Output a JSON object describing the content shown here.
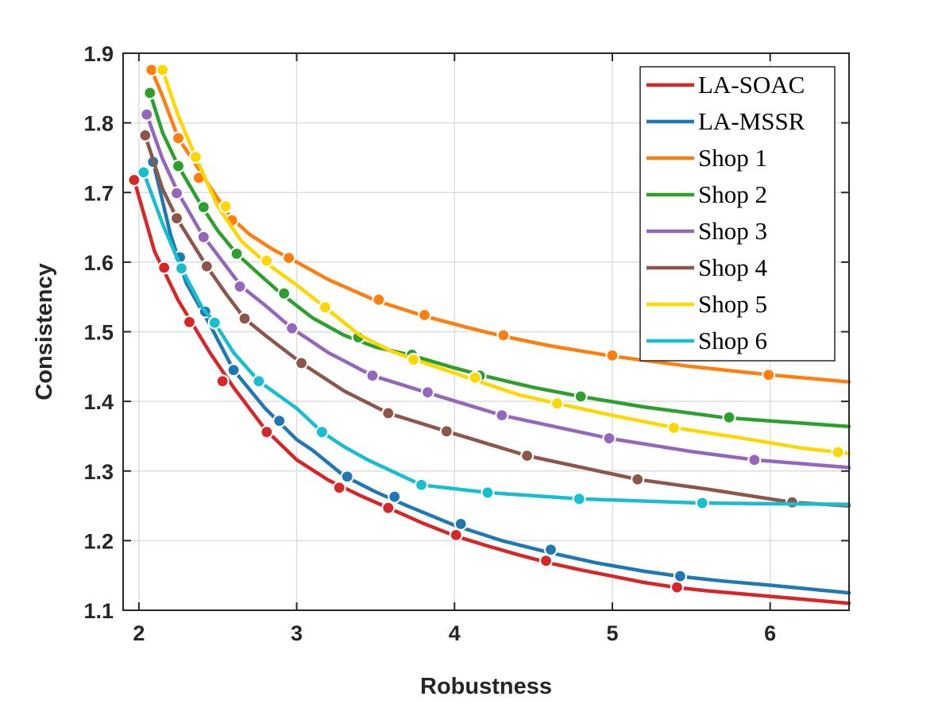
{
  "chart_data": {
    "type": "line",
    "title": "",
    "xlabel": "Robustness",
    "ylabel": "Consistency",
    "xlim": [
      1.9,
      6.5
    ],
    "ylim": [
      1.1,
      1.9
    ],
    "xticks": [
      2,
      3,
      4,
      5,
      6
    ],
    "yticks": [
      1.1,
      1.2,
      1.3,
      1.4,
      1.5,
      1.6,
      1.7,
      1.8,
      1.9
    ],
    "xtick_labels": [
      "2",
      "3",
      "4",
      "5",
      "6"
    ],
    "ytick_labels": [
      "1.1",
      "1.2",
      "1.3",
      "1.4",
      "1.5",
      "1.6",
      "1.7",
      "1.8",
      "1.9"
    ],
    "grid": true,
    "legend_position": "top-right",
    "series": [
      {
        "name": "LA-SOAC",
        "color": "#d62728",
        "x": [
          1.97,
          2.1,
          2.25,
          2.45,
          2.6,
          2.8,
          3.0,
          3.2,
          3.4,
          3.6,
          3.8,
          4.0,
          4.2,
          4.4,
          4.6,
          4.8,
          5.0,
          5.2,
          5.4,
          5.6,
          5.8,
          6.0,
          6.2,
          6.5
        ],
        "y": [
          1.718,
          1.615,
          1.545,
          1.47,
          1.42,
          1.36,
          1.316,
          1.287,
          1.265,
          1.245,
          1.225,
          1.207,
          1.193,
          1.18,
          1.168,
          1.158,
          1.149,
          1.14,
          1.133,
          1.128,
          1.124,
          1.12,
          1.116,
          1.11
        ],
        "markers": [
          [
            1.97,
            1.718
          ],
          [
            2.16,
            1.592
          ],
          [
            2.32,
            1.514
          ],
          [
            2.53,
            1.429
          ],
          [
            2.81,
            1.356
          ],
          [
            3.27,
            1.276
          ],
          [
            3.58,
            1.247
          ],
          [
            4.01,
            1.208
          ],
          [
            4.58,
            1.171
          ],
          [
            5.41,
            1.133
          ]
        ]
      },
      {
        "name": "LA-MSSR",
        "color": "#1f77b4",
        "x": [
          2.09,
          2.2,
          2.3,
          2.45,
          2.6,
          2.8,
          3.0,
          3.1,
          3.3,
          3.5,
          3.7,
          4.0,
          4.3,
          4.6,
          4.9,
          5.2,
          5.45,
          5.7,
          6.0,
          6.5
        ],
        "y": [
          1.744,
          1.64,
          1.57,
          1.51,
          1.445,
          1.39,
          1.345,
          1.33,
          1.293,
          1.27,
          1.25,
          1.222,
          1.2,
          1.183,
          1.168,
          1.156,
          1.148,
          1.142,
          1.136,
          1.125
        ],
        "markers": [
          [
            2.09,
            1.744
          ],
          [
            2.26,
            1.607
          ],
          [
            2.42,
            1.529
          ],
          [
            2.6,
            1.445
          ],
          [
            2.89,
            1.372
          ],
          [
            3.32,
            1.292
          ],
          [
            3.62,
            1.263
          ],
          [
            4.04,
            1.224
          ],
          [
            4.61,
            1.187
          ],
          [
            5.43,
            1.149
          ]
        ]
      },
      {
        "name": "Shop 1",
        "color": "#ff7f0e",
        "x": [
          2.08,
          2.15,
          2.25,
          2.35,
          2.45,
          2.58,
          2.7,
          2.85,
          3.0,
          3.2,
          3.5,
          3.8,
          4.1,
          4.3,
          4.6,
          5.0,
          5.5,
          6.0,
          6.5
        ],
        "y": [
          1.876,
          1.838,
          1.778,
          1.744,
          1.708,
          1.665,
          1.64,
          1.618,
          1.6,
          1.575,
          1.545,
          1.523,
          1.505,
          1.494,
          1.48,
          1.465,
          1.45,
          1.438,
          1.428
        ],
        "markers": [
          [
            2.08,
            1.876
          ],
          [
            2.25,
            1.778
          ],
          [
            2.38,
            1.721
          ],
          [
            2.59,
            1.66
          ],
          [
            2.95,
            1.606
          ],
          [
            3.52,
            1.546
          ],
          [
            3.81,
            1.524
          ],
          [
            4.31,
            1.495
          ],
          [
            5.0,
            1.466
          ],
          [
            5.99,
            1.438
          ]
        ]
      },
      {
        "name": "Shop 2",
        "color": "#2ca02c",
        "x": [
          2.07,
          2.15,
          2.25,
          2.4,
          2.5,
          2.62,
          2.75,
          2.9,
          3.1,
          3.3,
          3.5,
          3.73,
          4.0,
          4.2,
          4.5,
          4.8,
          5.2,
          5.7,
          6.0,
          6.5
        ],
        "y": [
          1.843,
          1.786,
          1.738,
          1.68,
          1.645,
          1.612,
          1.585,
          1.555,
          1.52,
          1.495,
          1.478,
          1.466,
          1.448,
          1.436,
          1.42,
          1.407,
          1.392,
          1.377,
          1.372,
          1.364
        ],
        "markers": [
          [
            2.07,
            1.843
          ],
          [
            2.25,
            1.738
          ],
          [
            2.41,
            1.679
          ],
          [
            2.62,
            1.612
          ],
          [
            2.92,
            1.555
          ],
          [
            3.39,
            1.492
          ],
          [
            3.73,
            1.467
          ],
          [
            4.16,
            1.437
          ],
          [
            4.8,
            1.407
          ],
          [
            5.74,
            1.377
          ]
        ]
      },
      {
        "name": "Shop 5",
        "color": "#ffd700",
        "x": [
          2.15,
          2.25,
          2.36,
          2.5,
          2.65,
          2.8,
          3.0,
          3.18,
          3.4,
          3.6,
          3.75,
          4.1,
          4.4,
          4.65,
          5.0,
          5.4,
          5.8,
          6.2,
          6.5
        ],
        "y": [
          1.876,
          1.81,
          1.751,
          1.68,
          1.63,
          1.6,
          1.567,
          1.535,
          1.495,
          1.472,
          1.46,
          1.433,
          1.41,
          1.397,
          1.38,
          1.362,
          1.348,
          1.333,
          1.325
        ],
        "markers": [
          [
            2.15,
            1.876
          ],
          [
            2.36,
            1.751
          ],
          [
            2.55,
            1.68
          ],
          [
            2.81,
            1.602
          ],
          [
            3.18,
            1.535
          ],
          [
            3.74,
            1.46
          ],
          [
            4.13,
            1.434
          ],
          [
            4.65,
            1.397
          ],
          [
            5.39,
            1.362
          ],
          [
            6.43,
            1.327
          ]
        ]
      },
      {
        "name": "Shop 3",
        "color": "#9467bd",
        "x": [
          2.05,
          2.15,
          2.25,
          2.4,
          2.55,
          2.65,
          2.8,
          2.97,
          3.2,
          3.48,
          3.82,
          4.3,
          4.98,
          5.5,
          5.9,
          6.5
        ],
        "y": [
          1.812,
          1.748,
          1.699,
          1.64,
          1.595,
          1.565,
          1.538,
          1.505,
          1.47,
          1.437,
          1.413,
          1.38,
          1.347,
          1.328,
          1.316,
          1.305
        ],
        "markers": [
          [
            2.05,
            1.812
          ],
          [
            2.24,
            1.699
          ],
          [
            2.41,
            1.636
          ],
          [
            2.64,
            1.565
          ],
          [
            2.97,
            1.505
          ],
          [
            3.48,
            1.437
          ],
          [
            3.83,
            1.413
          ],
          [
            4.3,
            1.38
          ],
          [
            4.98,
            1.347
          ],
          [
            5.9,
            1.316
          ]
        ]
      },
      {
        "name": "Shop 4",
        "color": "#8c564b",
        "x": [
          2.04,
          2.15,
          2.24,
          2.43,
          2.55,
          2.67,
          2.8,
          3.03,
          3.3,
          3.58,
          3.95,
          4.46,
          5.16,
          5.6,
          6.14,
          6.5
        ],
        "y": [
          1.782,
          1.705,
          1.663,
          1.594,
          1.555,
          1.519,
          1.495,
          1.455,
          1.415,
          1.383,
          1.357,
          1.322,
          1.288,
          1.274,
          1.255,
          1.25
        ],
        "markers": [
          [
            2.04,
            1.782
          ],
          [
            2.24,
            1.663
          ],
          [
            2.43,
            1.594
          ],
          [
            2.67,
            1.519
          ],
          [
            3.03,
            1.455
          ],
          [
            3.58,
            1.383
          ],
          [
            3.95,
            1.357
          ],
          [
            4.46,
            1.322
          ],
          [
            5.16,
            1.288
          ],
          [
            6.14,
            1.255
          ]
        ]
      },
      {
        "name": "Shop 6",
        "color": "#17becf",
        "x": [
          2.03,
          2.15,
          2.27,
          2.4,
          2.48,
          2.6,
          2.76,
          3.0,
          3.16,
          3.3,
          3.45,
          3.79,
          4.21,
          4.79,
          5.57,
          6.5
        ],
        "y": [
          1.729,
          1.655,
          1.591,
          1.535,
          1.513,
          1.47,
          1.429,
          1.39,
          1.356,
          1.335,
          1.316,
          1.28,
          1.269,
          1.26,
          1.254,
          1.252
        ],
        "markers": [
          [
            2.03,
            1.729
          ],
          [
            2.27,
            1.591
          ],
          [
            2.48,
            1.513
          ],
          [
            2.76,
            1.429
          ],
          [
            3.16,
            1.356
          ],
          [
            3.79,
            1.28
          ],
          [
            4.21,
            1.269
          ],
          [
            4.79,
            1.26
          ],
          [
            5.57,
            1.254
          ]
        ]
      }
    ],
    "legend_order": [
      "LA-SOAC",
      "LA-MSSR",
      "Shop 1",
      "Shop 2",
      "Shop 3",
      "Shop 4",
      "Shop 5",
      "Shop 6"
    ]
  }
}
